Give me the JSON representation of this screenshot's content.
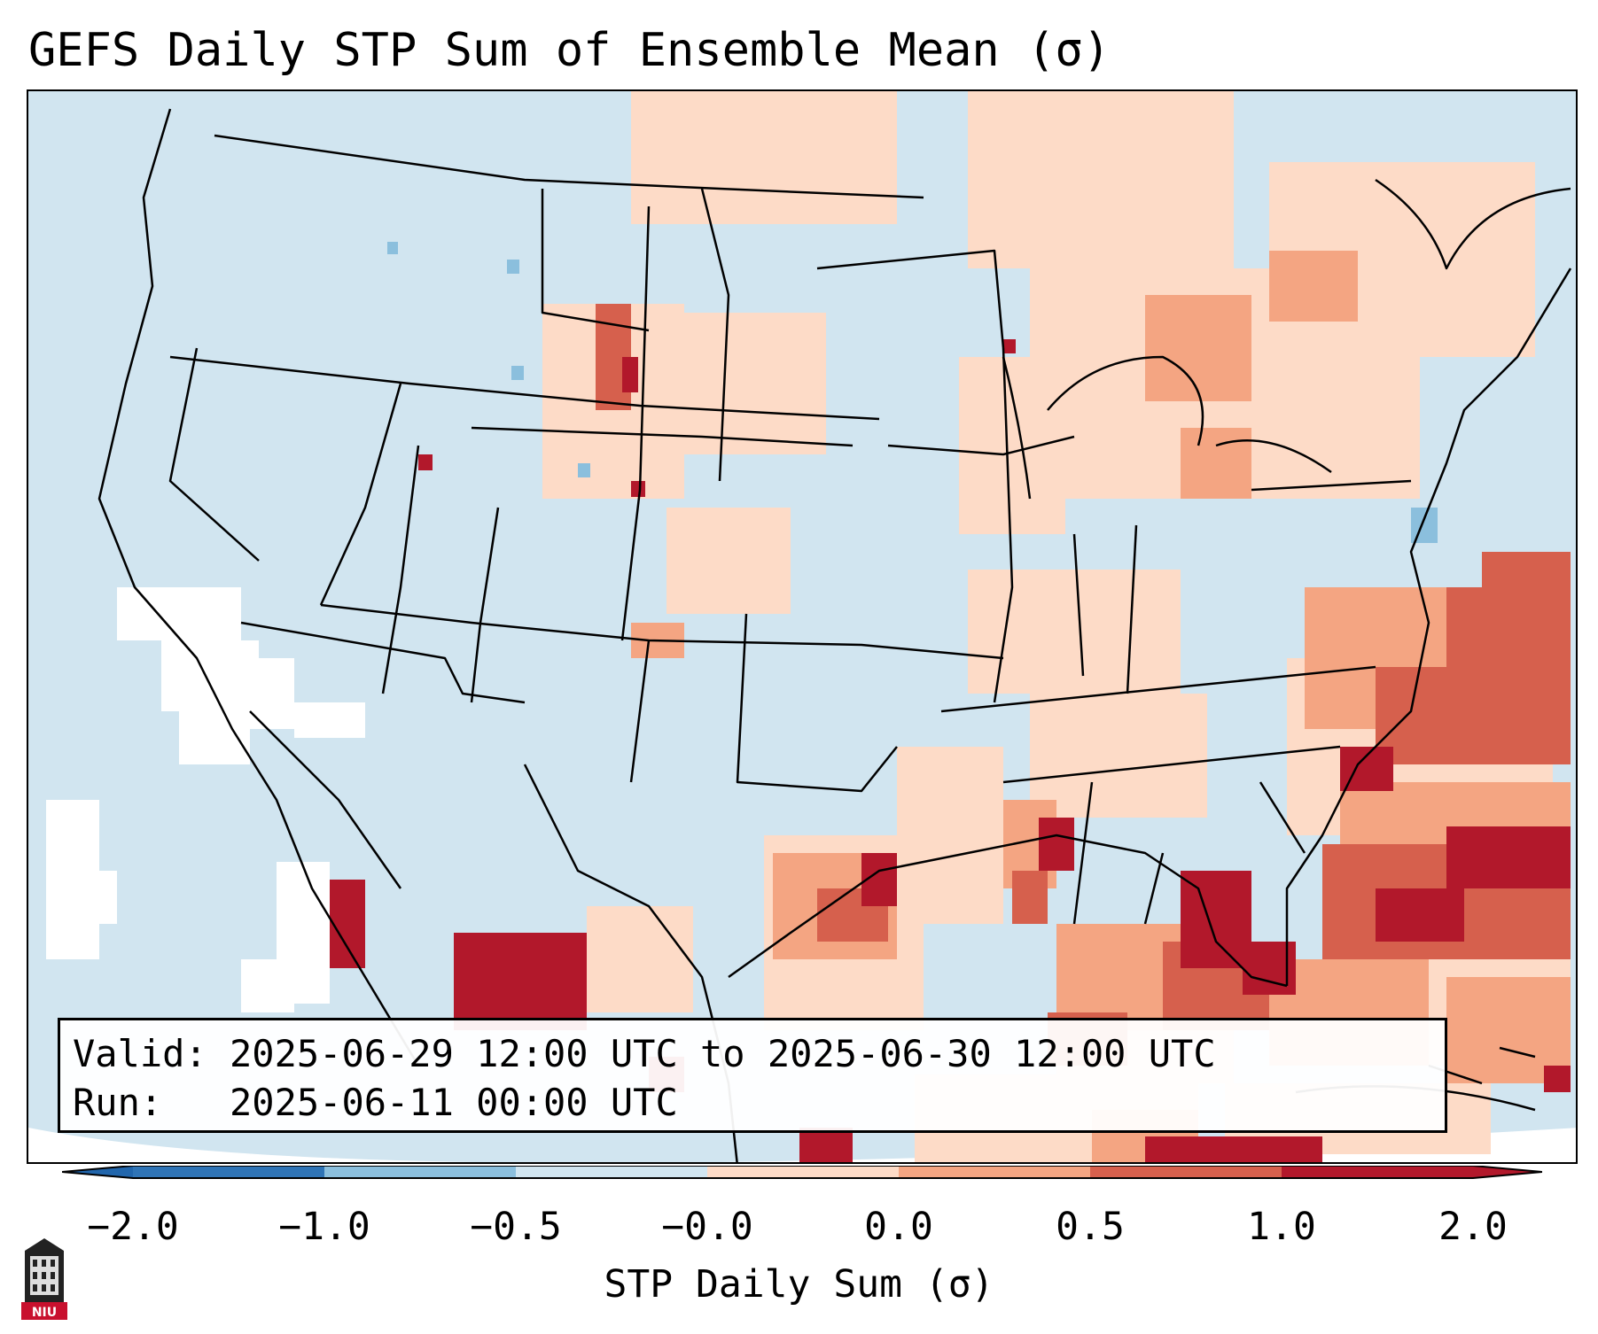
{
  "title": "GEFS Daily STP Sum of Ensemble Mean (σ)",
  "info": {
    "valid_label": "Valid:",
    "valid_value": "2025-06-29 12:00 UTC to 2025-06-30 12:00 UTC",
    "run_label": "Run:",
    "run_value": "2025-06-11 00:00 UTC"
  },
  "colorbar": {
    "label": "STP Daily Sum (σ)",
    "ticks": [
      "−2.0",
      "−1.0",
      "−0.5",
      "−0.0",
      "0.0",
      "0.5",
      "1.0",
      "2.0"
    ],
    "bin_colors": [
      "#2f74b6",
      "#8bbfdd",
      "#d1e5f0",
      "#f7fbff",
      "#fddbc7",
      "#f4a582",
      "#d6604d",
      "#b2182b"
    ],
    "extend_under_color": "#2166ac",
    "extend_over_color": "#b2182b"
  },
  "map": {
    "projection": "Lambert Conformal",
    "region": "CONUS",
    "ocean_color": "#d1e5f0",
    "land_color": "#d1e5f0",
    "outline_color": "#000000"
  },
  "logo": {
    "text": "NIU",
    "color": "#c8102e"
  }
}
